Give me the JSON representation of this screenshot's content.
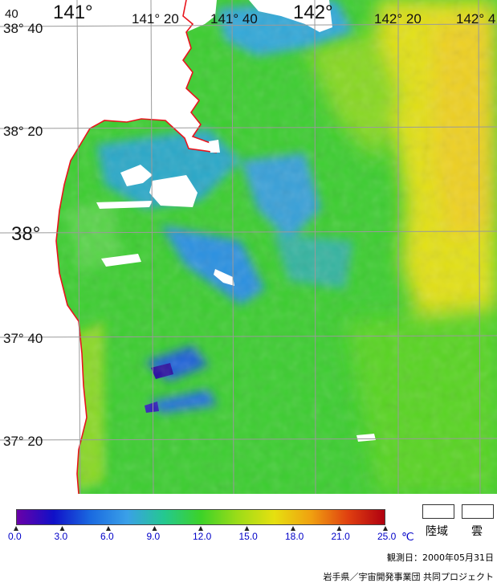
{
  "map": {
    "grid_labels": {
      "top_left_corner": "40",
      "lon_141": "141°",
      "lon_141_20": "141° 20",
      "lon_141_40": "141° 40",
      "lon_142": "142°",
      "lon_142_20": "142° 20",
      "lon_142_40": "142° 4",
      "lat_38_40": "38° 40",
      "lat_38_20": "38° 20",
      "lat_38": "38°",
      "lat_37_40": "37° 40",
      "lat_37_20": "37° 20"
    },
    "colors": {
      "land_cloud": "#ffffff",
      "coastline": "#e8141c",
      "grid": "#9a9a9a"
    }
  },
  "colorbar": {
    "ticks": [
      "0.0",
      "3.0",
      "6.0",
      "9.0",
      "12.0",
      "15.0",
      "18.0",
      "21.0",
      "25.0"
    ],
    "unit": "℃",
    "range": [
      0,
      25
    ],
    "stops": [
      "#6a00a8",
      "#1010c8",
      "#1a6ae0",
      "#3aa0e8",
      "#24c890",
      "#3cd228",
      "#9cdc18",
      "#e6e010",
      "#f0a010",
      "#e04010",
      "#b00010"
    ]
  },
  "legend": {
    "land_label": "陸域",
    "cloud_label": "雲"
  },
  "footer": {
    "observation_date": "観測日：2000年05月31日",
    "credit": "岩手県／宇宙開発事業団  共同プロジェクト"
  }
}
